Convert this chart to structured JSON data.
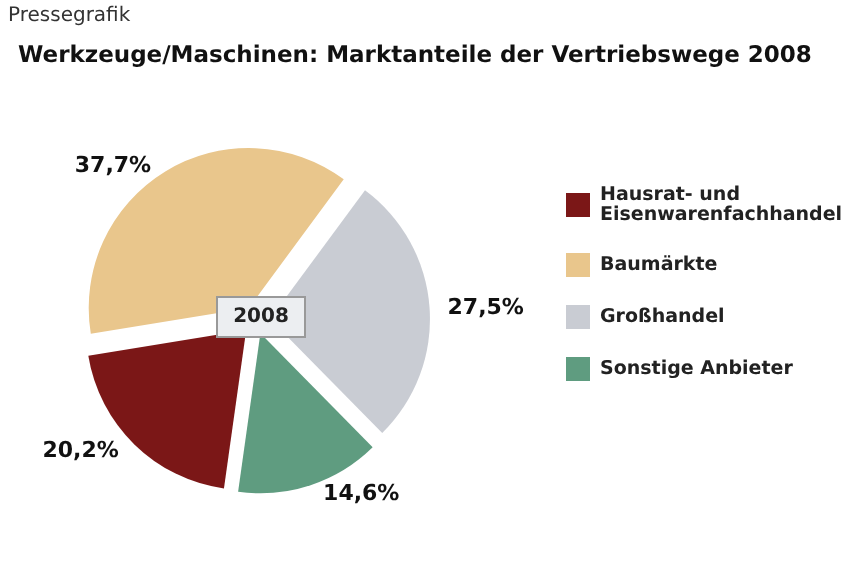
{
  "chart_data": {
    "type": "pie",
    "title": "Werkzeuge/Maschinen: Marktanteile der Vertriebswege 2008",
    "categories": [
      "Hausrat- und Eisenwarenfachhandel",
      "Baumärkte",
      "Großhandel",
      "Sonstige Anbieter"
    ],
    "values": [
      20.2,
      37.7,
      27.5,
      14.6
    ],
    "colors": [
      "#7b1717",
      "#e9c68c",
      "#c9ccd3",
      "#5f9c80"
    ],
    "value_labels": [
      "20,2%",
      "37,7%",
      "27,5%",
      "14,6%"
    ],
    "legend": "right",
    "annotations": [
      "Pressegrafik",
      "2008"
    ]
  }
}
